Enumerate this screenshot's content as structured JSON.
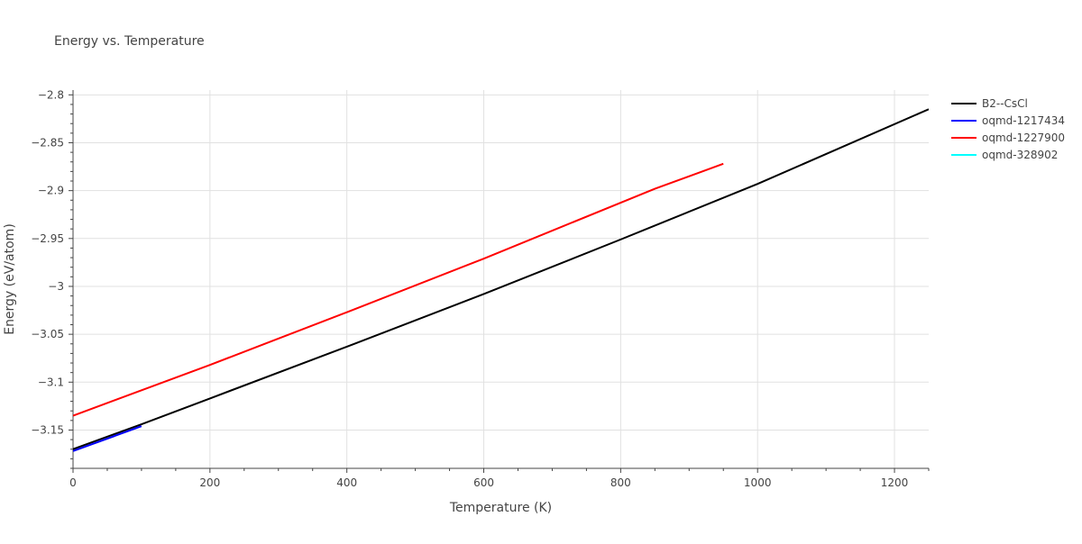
{
  "chart_data": {
    "type": "line",
    "title": "Energy vs. Temperature",
    "xlabel": "Temperature (K)",
    "ylabel": "Energy (eV/atom)",
    "xlim": [
      0,
      1250
    ],
    "ylim": [
      -3.19,
      -2.795
    ],
    "x_ticks": [
      0,
      200,
      400,
      600,
      800,
      1000,
      1200
    ],
    "y_ticks": [
      -2.8,
      -2.85,
      -2.9,
      -2.95,
      -3.0,
      -3.05,
      -3.1,
      -3.15
    ],
    "grid": true,
    "legend_position": "right",
    "series": [
      {
        "name": "B2--CsCl",
        "color": "#000000",
        "x": [
          0,
          100,
          200,
          400,
          600,
          800,
          1000,
          1250
        ],
        "y": [
          -3.17,
          -3.144,
          -3.117,
          -3.063,
          -3.008,
          -2.951,
          -2.893,
          -2.815
        ]
      },
      {
        "name": "oqmd-1217434",
        "color": "#0000ff",
        "x": [
          0,
          50,
          100
        ],
        "y": [
          -3.172,
          -3.159,
          -3.146
        ]
      },
      {
        "name": "oqmd-1227900",
        "color": "#ff0000",
        "x": [
          0,
          200,
          400,
          600,
          850,
          950
        ],
        "y": [
          -3.135,
          -3.082,
          -3.027,
          -2.971,
          -2.898,
          -2.872
        ]
      },
      {
        "name": "oqmd-328902",
        "color": "#00ffff",
        "x": [],
        "y": []
      }
    ]
  }
}
